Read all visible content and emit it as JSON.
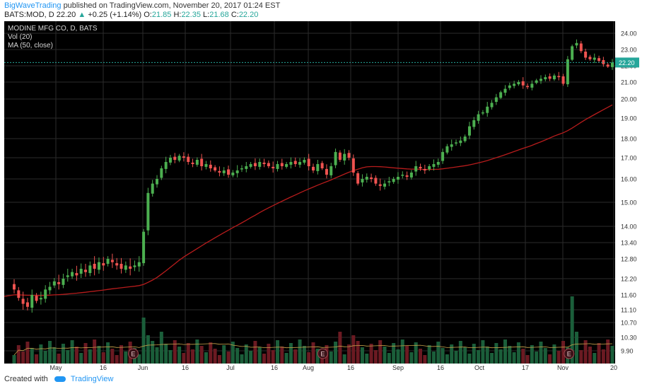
{
  "header": {
    "author": "BigWaveTrading",
    "published_text": "published on TradingView.com, November 20, 2017 01:24 EST",
    "symbol": "BATS:MOD, D",
    "last": "22.20",
    "arrow": "▲",
    "change": "+0.25 (+1.14%)",
    "o_label": "O:",
    "o": "21.85",
    "h_label": "H:",
    "h": "22.35",
    "l_label": "L:",
    "l": "21.68",
    "c_label": "C:",
    "c": "22.20"
  },
  "legend": {
    "name": "MODINE MFG CO, D, BATS",
    "vol": "Vol (20)",
    "ma": "MA (50, close)"
  },
  "footer": {
    "created": "Created with",
    "brand": "TradingView"
  },
  "colors": {
    "bg": "#000000",
    "up": "#4caf50",
    "down": "#ef5350",
    "ma": "#b71c1c",
    "grid": "#2b2b2b",
    "price_tag": "#26a69a"
  },
  "chart_data": {
    "type": "candlestick",
    "x_tick_labels": [
      "May",
      "16",
      "Jun",
      "16",
      "Jul",
      "16",
      "Aug",
      "16",
      "Sep",
      "16",
      "Oct",
      "17",
      "Nov",
      "20"
    ],
    "y_tick_labels": [
      "9.90",
      "10.30",
      "10.70",
      "11.10",
      "11.60",
      "12.20",
      "12.80",
      "13.40",
      "14.00",
      "15.00",
      "16.00",
      "17.00",
      "18.00",
      "19.00",
      "20.00",
      "21.00",
      "22.00",
      "23.00",
      "24.00"
    ],
    "price_tag": "22.20",
    "earnings_marker": "E",
    "earnings_dates": [
      "2017-05-24",
      "2017-08-02",
      "2017-11-01"
    ],
    "close": [
      11.8,
      11.5,
      11.3,
      11.2,
      11.6,
      11.4,
      11.5,
      11.8,
      11.9,
      12.1,
      12.0,
      12.2,
      12.3,
      12.4,
      12.3,
      12.5,
      12.4,
      12.6,
      12.5,
      12.7,
      12.6,
      12.8,
      12.7,
      12.6,
      12.5,
      12.6,
      12.5,
      12.6,
      12.7,
      13.8,
      15.4,
      15.8,
      16.0,
      16.5,
      16.8,
      17.0,
      16.9,
      17.1,
      17.0,
      16.8,
      16.7,
      16.9,
      16.6,
      16.7,
      16.5,
      16.4,
      16.3,
      16.4,
      16.2,
      16.3,
      16.4,
      16.5,
      16.6,
      16.7,
      16.6,
      16.8,
      16.7,
      16.6,
      16.5,
      16.7,
      16.6,
      16.7,
      16.8,
      16.7,
      16.8,
      16.9,
      16.6,
      16.4,
      16.7,
      16.5,
      16.2,
      16.6,
      17.3,
      16.9,
      17.2,
      17.0,
      16.3,
      15.8,
      16.0,
      16.1,
      16.0,
      15.8,
      15.7,
      15.8,
      15.9,
      16.0,
      16.1,
      16.2,
      16.1,
      16.3,
      16.6,
      16.5,
      16.4,
      16.6,
      16.7,
      16.8,
      17.3,
      17.6,
      17.7,
      17.8,
      17.9,
      18.1,
      18.6,
      18.9,
      19.2,
      19.3,
      19.6,
      19.8,
      20.1,
      20.4,
      20.6,
      20.8,
      20.9,
      21.0,
      20.8,
      20.7,
      20.9,
      21.1,
      21.2,
      21.3,
      21.2,
      21.4,
      21.3,
      20.9,
      22.4,
      23.2,
      23.4,
      22.9,
      22.5,
      22.4,
      22.5,
      22.3,
      22.1,
      21.95,
      22.2
    ]
  }
}
